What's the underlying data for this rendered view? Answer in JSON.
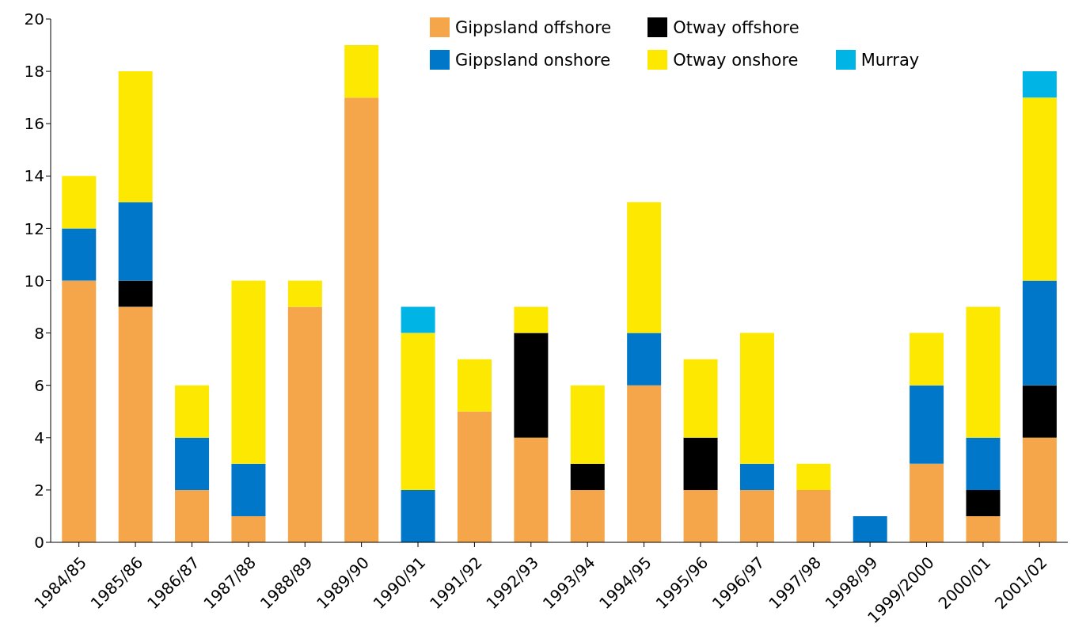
{
  "chart_data": {
    "type": "bar",
    "stacked": true,
    "categories": [
      "1984/85",
      "1985/86",
      "1986/87",
      "1987/88",
      "1988/89",
      "1989/90",
      "1990/91",
      "1991/92",
      "1992/93",
      "1993/94",
      "1994/95",
      "1995/96",
      "1996/97",
      "1997/98",
      "1998/99",
      "1999/2000",
      "2000/01",
      "2001/02"
    ],
    "series": [
      {
        "name": "Gippsland offshore",
        "color": "#f5a54a",
        "values": [
          10,
          9,
          2,
          1,
          9,
          17,
          0,
          5,
          4,
          2,
          6,
          2,
          2,
          2,
          0,
          3,
          1,
          4
        ]
      },
      {
        "name": "Otway offshore",
        "color": "#000000",
        "values": [
          0,
          1,
          0,
          0,
          0,
          0,
          0,
          0,
          4,
          1,
          0,
          2,
          0,
          0,
          0,
          0,
          1,
          2
        ]
      },
      {
        "name": "Gippsland onshore",
        "color": "#0077c8",
        "values": [
          2,
          3,
          2,
          2,
          0,
          0,
          2,
          0,
          0,
          0,
          2,
          0,
          1,
          0,
          1,
          3,
          2,
          4
        ]
      },
      {
        "name": "Otway onshore",
        "color": "#fce800",
        "values": [
          2,
          5,
          2,
          7,
          1,
          2,
          6,
          2,
          1,
          3,
          5,
          3,
          5,
          1,
          0,
          2,
          5,
          7
        ]
      },
      {
        "name": "Murray",
        "color": "#00b4e6",
        "values": [
          0,
          0,
          0,
          0,
          0,
          0,
          1,
          0,
          0,
          0,
          0,
          0,
          0,
          0,
          0,
          0,
          0,
          1
        ]
      }
    ],
    "ylim": [
      0,
      20
    ],
    "yticks": [
      0,
      2,
      4,
      6,
      8,
      10,
      12,
      14,
      16,
      18,
      20
    ],
    "grid": false,
    "legend": "top"
  }
}
